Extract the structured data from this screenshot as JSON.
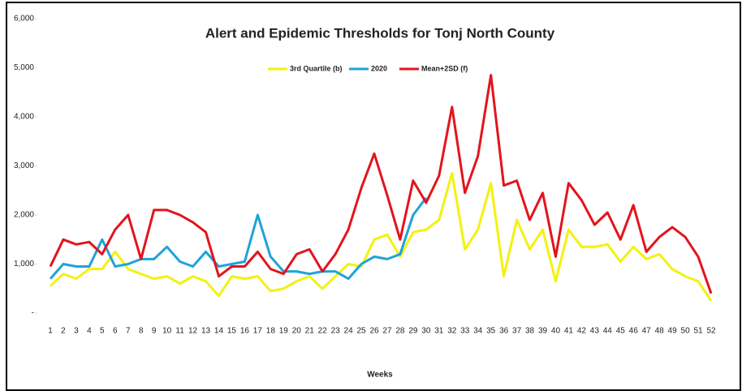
{
  "chart_data": {
    "type": "line",
    "title": "Alert and Epidemic Thresholds for Tonj North County",
    "xlabel": "Weeks",
    "categories": [
      "1",
      "2",
      "3",
      "4",
      "5",
      "6",
      "7",
      "8",
      "9",
      "10",
      "11",
      "12",
      "13",
      "14",
      "15",
      "16",
      "17",
      "18",
      "19",
      "20",
      "21",
      "22",
      "23",
      "24",
      "25",
      "26",
      "27",
      "28",
      "29",
      "30",
      "31",
      "32",
      "33",
      "34",
      "35",
      "36",
      "37",
      "38",
      "39",
      "40",
      "41",
      "42",
      "43",
      "44",
      "45",
      "46",
      "47",
      "48",
      "49",
      "50",
      "51",
      "52"
    ],
    "series": [
      {
        "name": "3rd Quartile (b)",
        "color": "#f2f20f",
        "values": [
          550,
          800,
          700,
          900,
          900,
          1250,
          900,
          800,
          700,
          750,
          600,
          750,
          650,
          350,
          750,
          700,
          750,
          450,
          500,
          650,
          750,
          500,
          750,
          1000,
          950,
          1500,
          1600,
          1150,
          1650,
          1700,
          1900,
          2850,
          1300,
          1700,
          2650,
          750,
          1900,
          1300,
          1700,
          650,
          1700,
          1350,
          1350,
          1400,
          1050,
          1350,
          1100,
          1200,
          900,
          750,
          650,
          250
        ]
      },
      {
        "name": "2020",
        "color": "#1fa3d8",
        "values": [
          700,
          1000,
          950,
          950,
          1500,
          950,
          1000,
          1100,
          1100,
          1350,
          1050,
          950,
          1250,
          950,
          1000,
          1050,
          2000,
          1150,
          850,
          850,
          800,
          850,
          850,
          700,
          1000,
          1150,
          1100,
          1200,
          2000,
          2350,
          null,
          null,
          null,
          null,
          null,
          null,
          null,
          null,
          null,
          null,
          null,
          null,
          null,
          null,
          null,
          null,
          null,
          null,
          null,
          null,
          null,
          null
        ]
      },
      {
        "name": "Mean+2SD (f)",
        "color": "#e3141c",
        "values": [
          950,
          1500,
          1400,
          1450,
          1200,
          1700,
          2000,
          1100,
          2100,
          2100,
          2000,
          1850,
          1650,
          750,
          950,
          950,
          1250,
          900,
          800,
          1200,
          1300,
          850,
          1200,
          1700,
          2550,
          3250,
          2400,
          1500,
          2700,
          2250,
          2800,
          4200,
          2450,
          3200,
          4850,
          2600,
          2700,
          1900,
          2450,
          1150,
          2650,
          2300,
          1800,
          2050,
          1500,
          2200,
          1250,
          1550,
          1750,
          1550,
          1150,
          400
        ]
      }
    ],
    "ylim": [
      0,
      6000
    ],
    "yticks": [
      {
        "value": 0,
        "label": "-"
      },
      {
        "value": 1000,
        "label": "1,000"
      },
      {
        "value": 2000,
        "label": "2,000"
      },
      {
        "value": 3000,
        "label": "3,000"
      },
      {
        "value": 4000,
        "label": "4,000"
      },
      {
        "value": 5000,
        "label": "5,000"
      },
      {
        "value": 6000,
        "label": "6,000"
      }
    ],
    "grid": false,
    "legend": "top"
  }
}
